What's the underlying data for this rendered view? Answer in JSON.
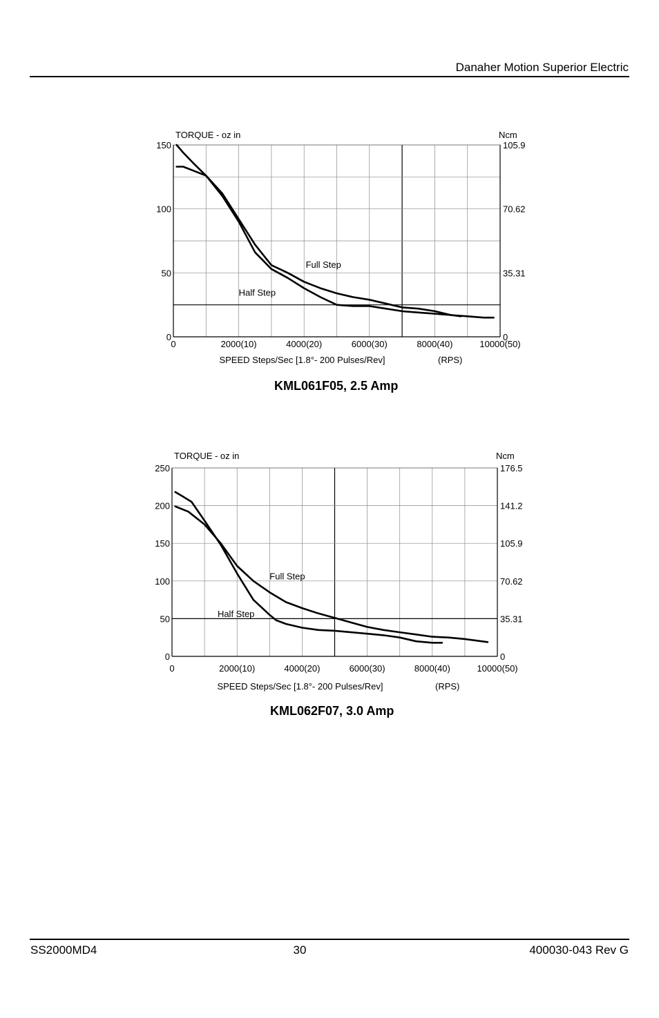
{
  "header": {
    "company": "Danaher Motion Superior Electric"
  },
  "footer": {
    "doc_id": "SS2000MD4",
    "page_number": "30",
    "part_number": "400030-043 Rev G"
  },
  "chart_data": [
    {
      "type": "line",
      "caption": "KML061F05, 2.5 Amp",
      "ylabel_left": "TORQUE - oz in",
      "ylabel_right": "Ncm",
      "xlabel": "SPEED Steps/Sec [1.8°- 200 Pulses/Rev]",
      "xlabel_units": "(RPS)",
      "xlim": [
        0,
        10000
      ],
      "ylim": [
        0,
        150
      ],
      "x_ticks": [
        {
          "value": 0,
          "label": "0"
        },
        {
          "value": 2000,
          "label": "2000(10)"
        },
        {
          "value": 4000,
          "label": "4000(20)"
        },
        {
          "value": 6000,
          "label": "6000(30)"
        },
        {
          "value": 8000,
          "label": "8000(40)"
        },
        {
          "value": 10000,
          "label": "10000(50)"
        }
      ],
      "y_ticks_left": [
        {
          "value": 0,
          "label": "0"
        },
        {
          "value": 50,
          "label": "50"
        },
        {
          "value": 100,
          "label": "100"
        },
        {
          "value": 150,
          "label": "150"
        }
      ],
      "y_ticks_right": [
        {
          "value": 0,
          "label": "0"
        },
        {
          "value": 50,
          "label": "35.31"
        },
        {
          "value": 100,
          "label": "70.62"
        },
        {
          "value": 150,
          "label": "105.9"
        }
      ],
      "grid": {
        "x_step": 1000,
        "y_step": 25,
        "heavy_x": [
          7000
        ],
        "heavy_y": [
          25
        ]
      },
      "series": [
        {
          "name": "Full Step",
          "label_at": [
            4050,
            54
          ],
          "x": [
            100,
            300,
            600,
            1000,
            1500,
            2000,
            2500,
            3000,
            3500,
            4000,
            4500,
            5000,
            5500,
            6000,
            6500,
            7000,
            7500,
            8000,
            8500,
            8800
          ],
          "y": [
            133,
            133,
            130,
            126,
            112,
            92,
            72,
            56,
            50,
            43,
            38,
            34,
            31,
            29,
            26,
            23,
            22,
            20,
            17,
            16
          ]
        },
        {
          "name": "Half Step",
          "label_at": [
            2000,
            32
          ],
          "x": [
            100,
            300,
            600,
            1000,
            1500,
            2000,
            2500,
            3000,
            3500,
            4000,
            4500,
            5000,
            5500,
            6000,
            6500,
            7000,
            7500,
            8000,
            8500,
            9000,
            9500,
            9800
          ],
          "y": [
            150,
            144,
            136,
            126,
            110,
            90,
            66,
            53,
            46,
            38,
            31,
            25,
            24,
            24,
            22,
            20,
            19,
            18,
            17,
            16,
            15,
            15
          ]
        }
      ]
    },
    {
      "type": "line",
      "caption": "KML062F07, 3.0 Amp",
      "ylabel_left": "TORQUE - oz in",
      "ylabel_right": "Ncm",
      "xlabel": "SPEED Steps/Sec [1.8°- 200 Pulses/Rev]",
      "xlabel_units": "(RPS)",
      "xlim": [
        0,
        10000
      ],
      "ylim": [
        0,
        250
      ],
      "x_ticks": [
        {
          "value": 0,
          "label": "0"
        },
        {
          "value": 2000,
          "label": "2000(10)"
        },
        {
          "value": 4000,
          "label": "4000(20)"
        },
        {
          "value": 6000,
          "label": "6000(30)"
        },
        {
          "value": 8000,
          "label": "8000(40)"
        },
        {
          "value": 10000,
          "label": "10000(50)"
        }
      ],
      "y_ticks_left": [
        {
          "value": 0,
          "label": "0"
        },
        {
          "value": 50,
          "label": "50"
        },
        {
          "value": 100,
          "label": "100"
        },
        {
          "value": 150,
          "label": "150"
        },
        {
          "value": 200,
          "label": "200"
        },
        {
          "value": 250,
          "label": "250"
        }
      ],
      "y_ticks_right": [
        {
          "value": 0,
          "label": "0"
        },
        {
          "value": 50,
          "label": "35.31"
        },
        {
          "value": 100,
          "label": "70.62"
        },
        {
          "value": 150,
          "label": "105.9"
        },
        {
          "value": 200,
          "label": "141.2"
        },
        {
          "value": 250,
          "label": "176.5"
        }
      ],
      "grid": {
        "x_step": 1000,
        "y_step": 50,
        "heavy_x": [
          5000
        ],
        "heavy_y": [
          50
        ]
      },
      "series": [
        {
          "name": "Full Step",
          "label_at": [
            3000,
            102
          ],
          "x": [
            100,
            500,
            1000,
            1500,
            2000,
            2500,
            3000,
            3500,
            4000,
            4500,
            5000,
            5500,
            6000,
            6500,
            7000,
            7500,
            8000,
            8500,
            9000,
            9700
          ],
          "y": [
            199,
            192,
            175,
            150,
            120,
            100,
            85,
            72,
            64,
            57,
            51,
            45,
            39,
            35,
            32,
            29,
            26,
            25,
            23,
            19
          ]
        },
        {
          "name": "Half Step",
          "label_at": [
            1400,
            52
          ],
          "x": [
            100,
            300,
            600,
            1000,
            1500,
            2000,
            2500,
            3000,
            3200,
            3500,
            4000,
            4500,
            5000,
            5500,
            6000,
            6500,
            7000,
            7500,
            8000,
            8300
          ],
          "y": [
            218,
            213,
            205,
            180,
            148,
            110,
            75,
            55,
            48,
            43,
            38,
            35,
            34,
            32,
            30,
            28,
            25,
            20,
            18,
            18
          ]
        }
      ]
    }
  ]
}
